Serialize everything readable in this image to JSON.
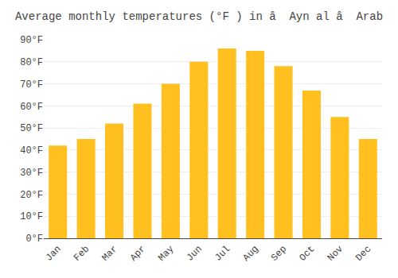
{
  "chart_data": {
    "type": "bar",
    "title": "Average monthly temperatures (°F ) in â  Ayn al â  Arab",
    "categories": [
      "Jan",
      "Feb",
      "Mar",
      "Apr",
      "May",
      "Jun",
      "Jul",
      "Aug",
      "Sep",
      "Oct",
      "Nov",
      "Dec"
    ],
    "values": [
      42,
      45,
      52,
      61,
      70,
      80,
      86,
      85,
      78,
      67,
      55,
      45
    ],
    "color": "#FFC020",
    "ylim": [
      0,
      90
    ],
    "yticks": [
      {
        "value": 0,
        "label": "0°F"
      },
      {
        "value": 10,
        "label": "10°F"
      },
      {
        "value": 20,
        "label": "20°F"
      },
      {
        "value": 30,
        "label": "30°F"
      },
      {
        "value": 40,
        "label": "40°F"
      },
      {
        "value": 50,
        "label": "50°F"
      },
      {
        "value": 60,
        "label": "60°F"
      },
      {
        "value": 70,
        "label": "70°F"
      },
      {
        "value": 80,
        "label": "80°F"
      },
      {
        "value": 90,
        "label": "90°F"
      }
    ],
    "grid": true
  }
}
